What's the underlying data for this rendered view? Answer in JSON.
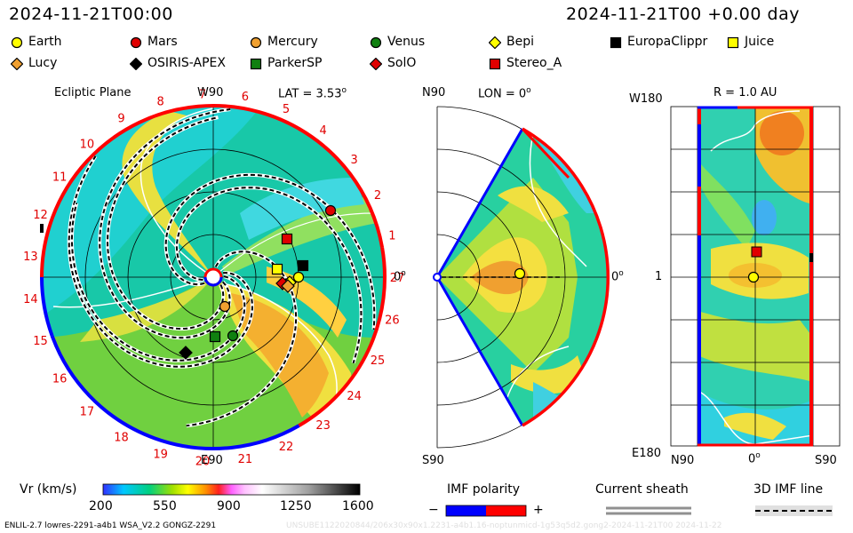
{
  "header": {
    "date_left": "2024-11-21T00:00",
    "date_right": "2024-11-21T00 +0.00 day"
  },
  "legend": [
    {
      "name": "Earth",
      "marker": "circle",
      "color": "#ffff00"
    },
    {
      "name": "Mars",
      "marker": "circle",
      "color": "#e00000"
    },
    {
      "name": "Mercury",
      "marker": "circle",
      "color": "#f0a030"
    },
    {
      "name": "Venus",
      "marker": "circle",
      "color": "#108010"
    },
    {
      "name": "Bepi",
      "marker": "diamond",
      "color": "#ffff00"
    },
    {
      "name": "EuropaClippr",
      "marker": "square",
      "color": "#000000"
    },
    {
      "name": "Juice",
      "marker": "square",
      "color": "#ffff00"
    },
    {
      "name": "Lucy",
      "marker": "diamond",
      "color": "#f0a030"
    },
    {
      "name": "OSIRIS-APEX",
      "marker": "diamond",
      "color": "#000000"
    },
    {
      "name": "ParkerSP",
      "marker": "square",
      "color": "#108010"
    },
    {
      "name": "SolO",
      "marker": "diamond",
      "color": "#e00000"
    },
    {
      "name": "Stereo_A",
      "marker": "square",
      "color": "#e00000"
    }
  ],
  "panels": {
    "ecliptic": {
      "title": "Ecliptic Plane",
      "lat_label": "LAT = 3.53",
      "lat_sup": "o",
      "top_label": "W90",
      "bottom_label": "E90",
      "right_label": "0",
      "right_sup": "o",
      "carrington_ticks": [
        "1",
        "2",
        "3",
        "4",
        "5",
        "6",
        "7",
        "8",
        "9",
        "10",
        "11",
        "12",
        "13",
        "14",
        "15",
        "16",
        "17",
        "18",
        "19",
        "20",
        "21",
        "22",
        "23",
        "24",
        "25",
        "26",
        "27"
      ]
    },
    "meridional": {
      "top_label": "N90",
      "lon_label": "LON = 0",
      "lon_sup": "o",
      "bottom_label": "S90",
      "right_label": "0",
      "right_sup": "o"
    },
    "radial": {
      "r_label": "R = 1.0 AU",
      "top_left": "W180",
      "mid_left": "1",
      "bottom_left": "E180",
      "bottom_n": "N90",
      "bottom_mid": "0",
      "bottom_mid_sup": "o",
      "bottom_s": "S90"
    }
  },
  "colorbar": {
    "label": "Vr (km/s)",
    "ticks": [
      "200",
      "550",
      "900",
      "1250",
      "1600"
    ]
  },
  "imf_polarity": {
    "label": "IMF polarity",
    "minus": "−",
    "plus": "+",
    "neg_color": "#0000ff",
    "pos_color": "#ff0000"
  },
  "current_sheath": {
    "label": "Current sheath"
  },
  "imf_line": {
    "label": "3D IMF line"
  },
  "footer": {
    "left": "ENLIL-2.7 lowres-2291-a4b1 WSA_V2.2 GONGZ-2291",
    "right": "UNSUBE1122020844/206x30x90x1.2231-a4b1.16-noptunmicd-1g53q5d2.gong2-2024-11-21T00   2024-11-22"
  },
  "chart_data": {
    "type": "heatmap",
    "quantity": "Vr (km/s)",
    "colorbar_range": [
      200,
      1600
    ],
    "earth_position": {
      "lon_deg": 0,
      "lat_deg": 3.53,
      "r_au": 1.0
    }
  }
}
